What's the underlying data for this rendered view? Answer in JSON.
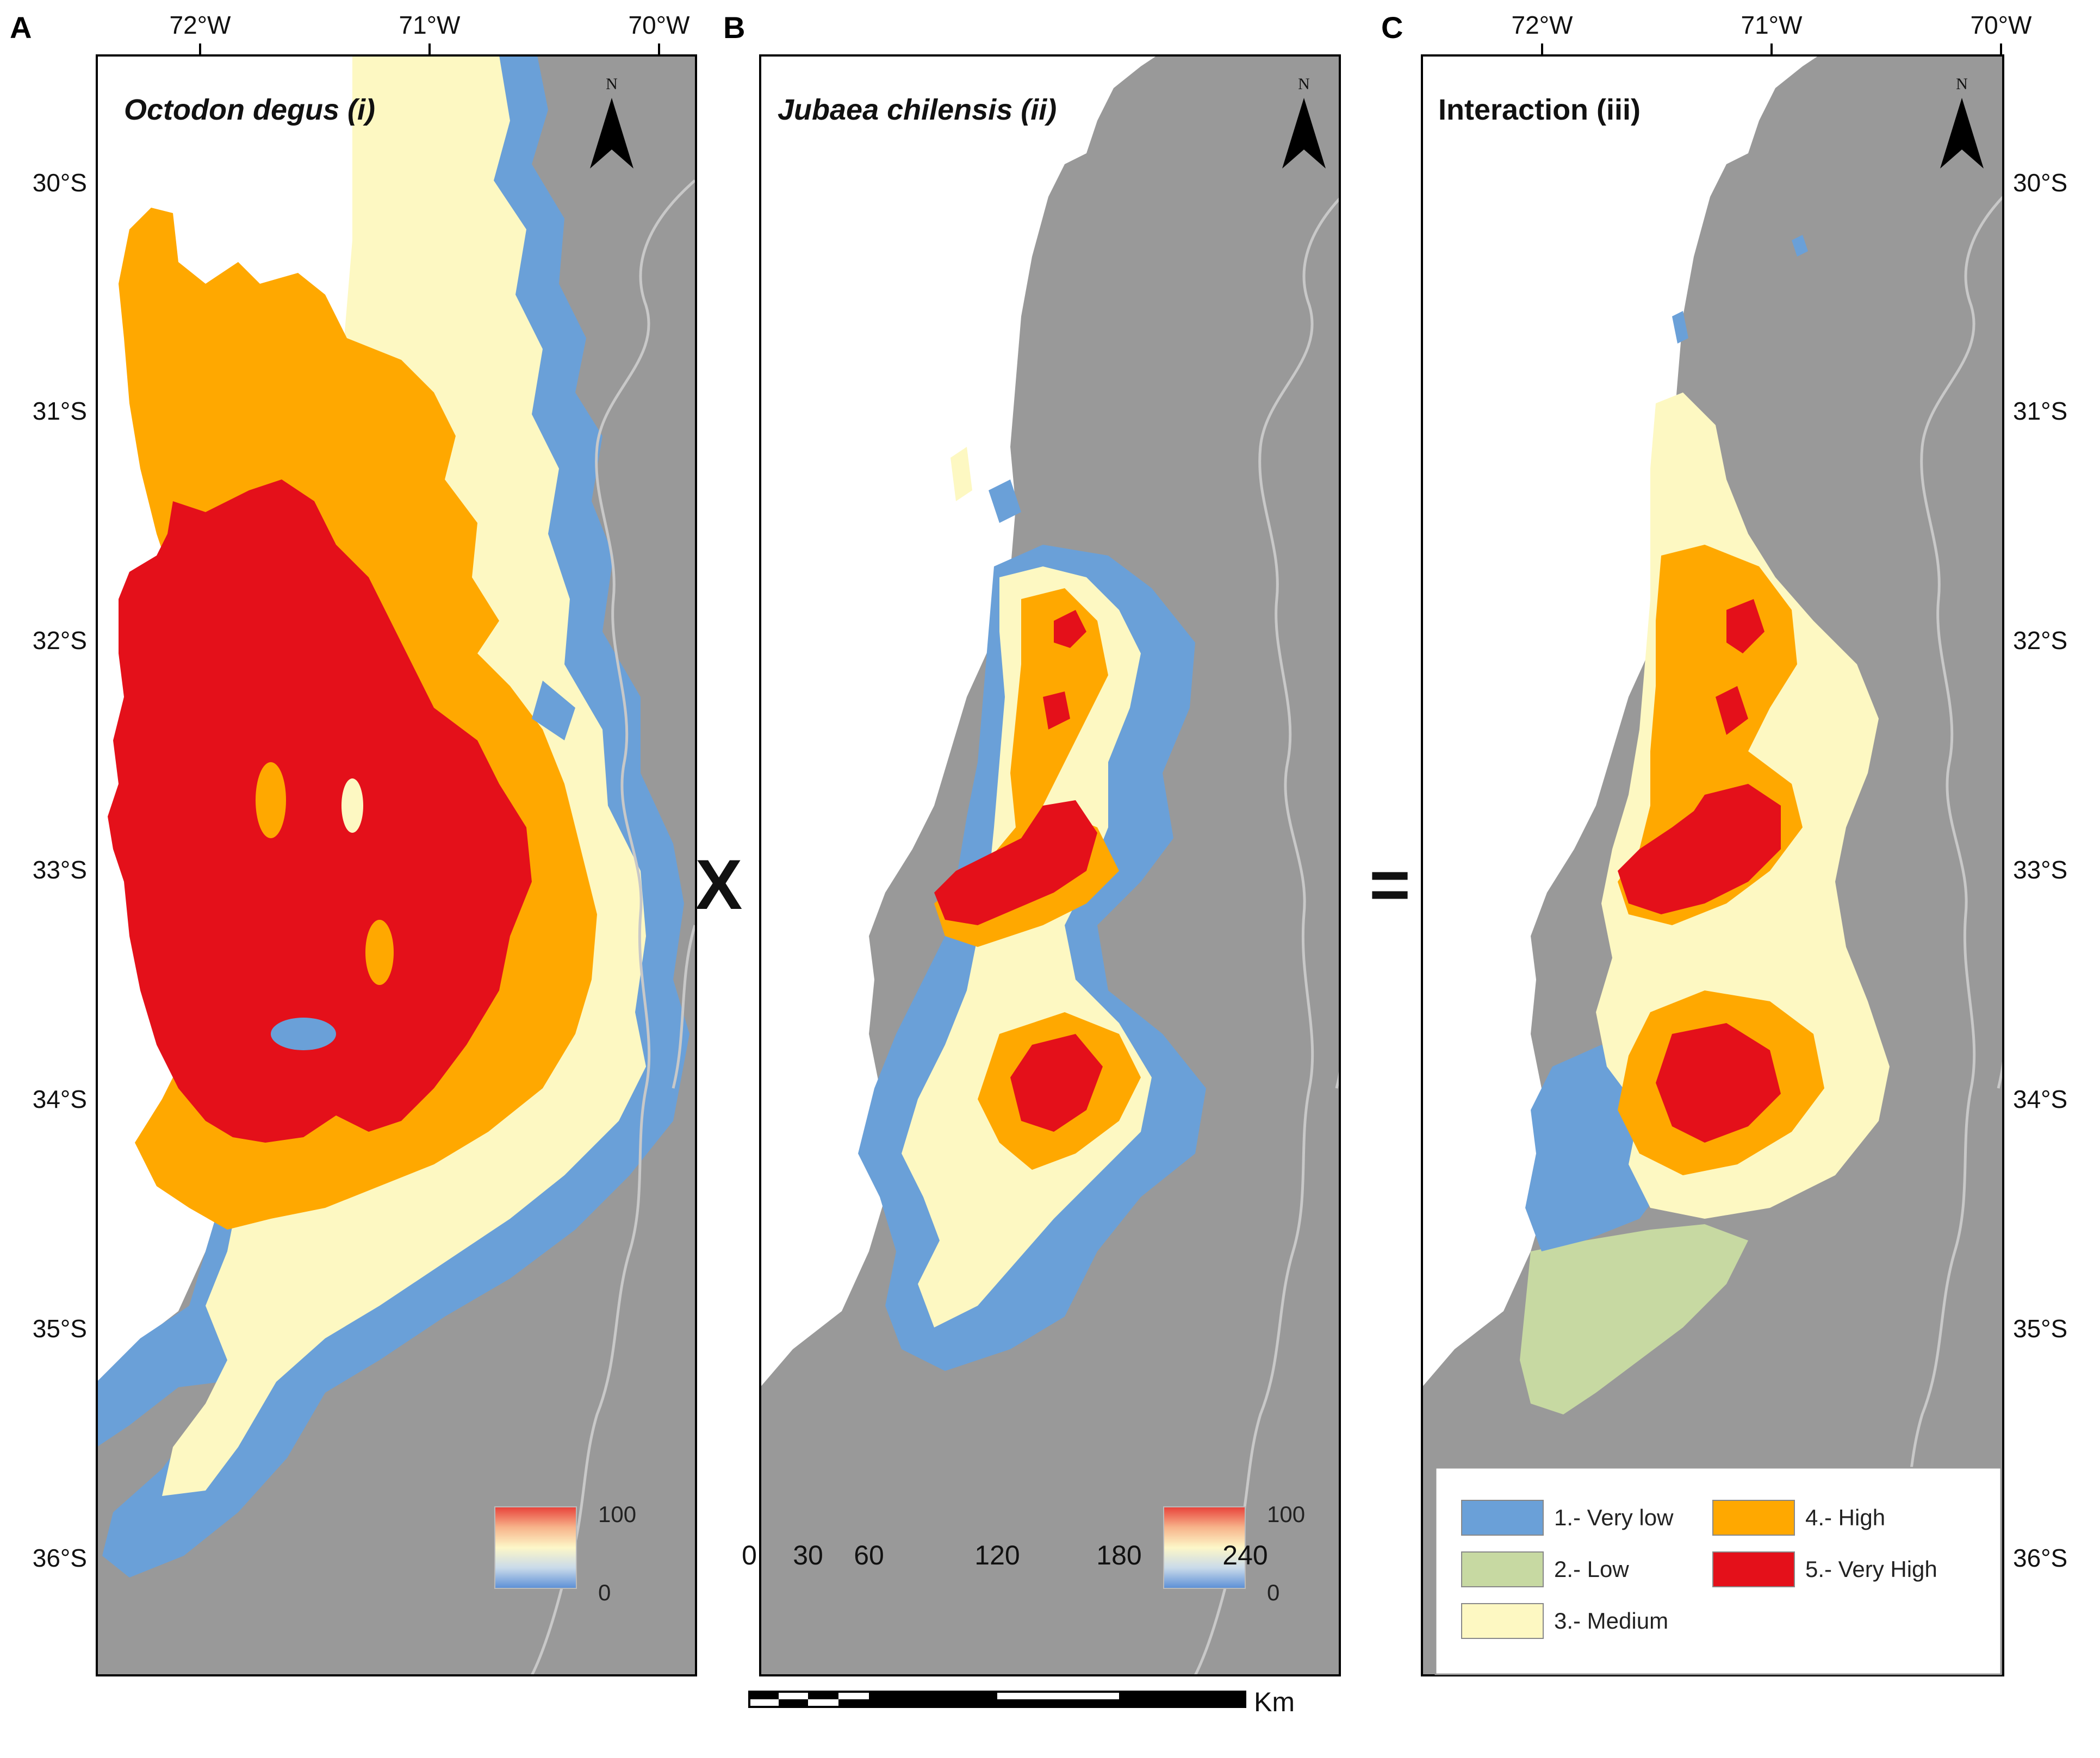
{
  "panels": {
    "a": {
      "letter": "A",
      "title": "Octodon degus (i)",
      "north": "N",
      "colorbar": {
        "max": "100",
        "min": "0"
      }
    },
    "b": {
      "letter": "B",
      "title": "Jubaea chilensis (ii)",
      "north": "N",
      "colorbar": {
        "max": "100",
        "min": "0"
      }
    },
    "c": {
      "letter": "C",
      "title": "Interaction (iii)",
      "north": "N",
      "legend": [
        {
          "label": "1.- Very low",
          "color": "#6aa0d8"
        },
        {
          "label": "2.- Low",
          "color": "#c7d9a2"
        },
        {
          "label": "3.- Medium",
          "color": "#fdf8c2"
        },
        {
          "label": "4.- High",
          "color": "#ffa800"
        },
        {
          "label": "5.- Very High",
          "color": "#e4101a"
        }
      ]
    }
  },
  "operators": {
    "multiply": "X",
    "equals": "="
  },
  "longitude_labels": [
    "72°W",
    "71°W",
    "70°W"
  ],
  "latitude_labels": [
    "30°S",
    "31°S",
    "32°S",
    "33°S",
    "34°S",
    "35°S",
    "36°S"
  ],
  "scale_bar": {
    "ticks": [
      "0",
      "30",
      "60",
      "120",
      "180",
      "240"
    ],
    "unit": "Km"
  },
  "colors": {
    "land": "#999999",
    "ocean": "#ffffff",
    "very_low": "#6aa0d8",
    "low": "#c7d9a2",
    "medium": "#fdf8c2",
    "high": "#ffa800",
    "very_high": "#e4101a",
    "border": "#c8c8c8"
  }
}
